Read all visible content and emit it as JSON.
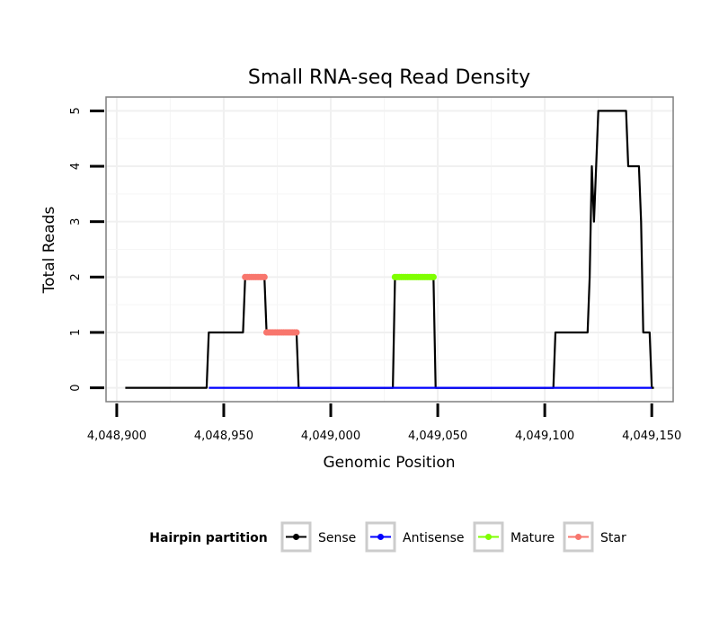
{
  "chart_data": {
    "type": "line",
    "title": "Small RNA-seq Read Density",
    "xlabel": "Genomic Position",
    "ylabel": "Total Reads",
    "xlim": [
      4048895,
      4049160
    ],
    "ylim": [
      -0.25,
      5.25
    ],
    "x_ticks": [
      4048900,
      4048950,
      4049000,
      4049050,
      4049100,
      4049150
    ],
    "x_tick_labels": [
      "4,048,900",
      "4,048,950",
      "4,049,000",
      "4,049,050",
      "4,049,100",
      "4,049,150"
    ],
    "y_ticks": [
      0,
      1,
      2,
      3,
      4,
      5
    ],
    "y_tick_labels": [
      "0",
      "1",
      "2",
      "3",
      "4",
      "5"
    ],
    "grid": true,
    "legend": {
      "title": "Hairpin partition",
      "position": "bottom",
      "entries": [
        "Sense",
        "Antisense",
        "Mature",
        "Star"
      ]
    },
    "series": [
      {
        "name": "Sense",
        "color": "#000000",
        "style": "line",
        "x": [
          4048904,
          4048942,
          4048943,
          4048959,
          4048960,
          4048969,
          4048970,
          4048984,
          4048985,
          4049029,
          4049030,
          4049048,
          4049049,
          4049104,
          4049105,
          4049120,
          4049121,
          4049122,
          4049123,
          4049125,
          4049126,
          4049138,
          4049139,
          4049144,
          4049145,
          4049146,
          4049148,
          4049149,
          4049150,
          4049151
        ],
        "y": [
          0,
          0,
          1,
          1,
          2,
          2,
          1,
          1,
          0,
          0,
          2,
          2,
          0,
          0,
          1,
          1,
          2,
          4,
          3,
          5,
          5,
          5,
          4,
          4,
          3,
          1,
          1,
          1,
          0,
          0
        ]
      },
      {
        "name": "Antisense",
        "color": "#0000ff",
        "style": "line",
        "x": [
          4048943,
          4048984,
          4049030,
          4049048,
          4049105,
          4049150
        ],
        "y": [
          0,
          0,
          0,
          0,
          0,
          0
        ]
      },
      {
        "name": "Mature",
        "color": "#7fff00",
        "style": "points",
        "x": [
          4049030,
          4049031,
          4049032,
          4049033,
          4049034,
          4049035,
          4049036,
          4049037,
          4049038,
          4049039,
          4049040,
          4049041,
          4049042,
          4049043,
          4049044,
          4049045,
          4049046,
          4049047,
          4049048
        ],
        "y": [
          2,
          2,
          2,
          2,
          2,
          2,
          2,
          2,
          2,
          2,
          2,
          2,
          2,
          2,
          2,
          2,
          2,
          2,
          2
        ]
      },
      {
        "name": "Star",
        "color": "#f8766d",
        "style": "points",
        "x": [
          4048960,
          4048961,
          4048962,
          4048963,
          4048964,
          4048965,
          4048966,
          4048967,
          4048968,
          4048969,
          4048970,
          4048971,
          4048972,
          4048973,
          4048974,
          4048975,
          4048976,
          4048977,
          4048978,
          4048979,
          4048980,
          4048981,
          4048982,
          4048983,
          4048984
        ],
        "y": [
          2,
          2,
          2,
          2,
          2,
          2,
          2,
          2,
          2,
          2,
          1,
          1,
          1,
          1,
          1,
          1,
          1,
          1,
          1,
          1,
          1,
          1,
          1,
          1,
          1
        ]
      }
    ]
  }
}
